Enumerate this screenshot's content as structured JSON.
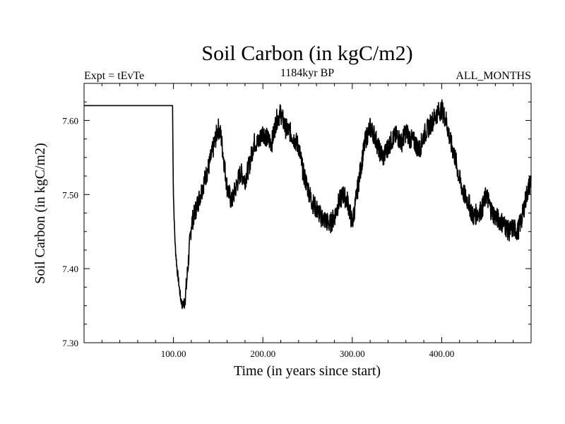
{
  "chart_data": {
    "type": "line",
    "title": "Soil Carbon (in kgC/m2)",
    "left_label": "Expt = tEvTe",
    "center_label": "1184kyr BP",
    "right_label": "ALL_MONTHS",
    "xlabel": "Time (in years since start)",
    "ylabel": "Soil Carbon (in kgC/m2)",
    "xlim": [
      0,
      500
    ],
    "ylim": [
      7.3,
      7.65
    ],
    "x_ticks": [
      100,
      200,
      300,
      400
    ],
    "x_tick_labels": [
      "100.00",
      "200.00",
      "300.00",
      "400.00"
    ],
    "y_ticks": [
      7.3,
      7.4,
      7.5,
      7.6
    ],
    "y_tick_labels": [
      "7.30",
      "7.40",
      "7.50",
      "7.60"
    ],
    "grid": false,
    "series": [
      {
        "name": "Soil Carbon",
        "color": "#000000",
        "x": [
          0,
          99,
          99.5,
          100,
          101,
          102,
          104,
          106,
          108,
          110,
          112,
          114,
          116,
          118,
          120,
          125,
          130,
          135,
          140,
          145,
          150,
          153,
          156,
          160,
          165,
          170,
          175,
          180,
          185,
          190,
          195,
          200,
          205,
          210,
          215,
          220,
          225,
          230,
          235,
          240,
          245,
          250,
          255,
          260,
          265,
          270,
          275,
          280,
          285,
          290,
          295,
          300,
          305,
          310,
          315,
          320,
          325,
          330,
          335,
          340,
          345,
          350,
          355,
          360,
          365,
          370,
          375,
          380,
          385,
          390,
          395,
          400,
          405,
          410,
          415,
          420,
          425,
          430,
          435,
          440,
          445,
          450,
          455,
          460,
          465,
          470,
          475,
          480,
          485,
          490,
          495,
          500
        ],
        "y": [
          7.62,
          7.62,
          7.55,
          7.5,
          7.46,
          7.43,
          7.4,
          7.38,
          7.36,
          7.35,
          7.355,
          7.37,
          7.4,
          7.43,
          7.46,
          7.48,
          7.5,
          7.52,
          7.54,
          7.565,
          7.59,
          7.58,
          7.55,
          7.51,
          7.49,
          7.51,
          7.53,
          7.52,
          7.54,
          7.57,
          7.57,
          7.585,
          7.575,
          7.57,
          7.6,
          7.61,
          7.59,
          7.585,
          7.575,
          7.565,
          7.53,
          7.51,
          7.49,
          7.48,
          7.47,
          7.465,
          7.46,
          7.47,
          7.49,
          7.5,
          7.49,
          7.46,
          7.5,
          7.54,
          7.575,
          7.59,
          7.58,
          7.56,
          7.55,
          7.565,
          7.575,
          7.58,
          7.57,
          7.585,
          7.575,
          7.57,
          7.56,
          7.58,
          7.59,
          7.6,
          7.61,
          7.615,
          7.6,
          7.57,
          7.55,
          7.52,
          7.5,
          7.49,
          7.47,
          7.475,
          7.48,
          7.5,
          7.48,
          7.47,
          7.465,
          7.46,
          7.45,
          7.455,
          7.45,
          7.47,
          7.5,
          7.52
        ]
      }
    ]
  }
}
